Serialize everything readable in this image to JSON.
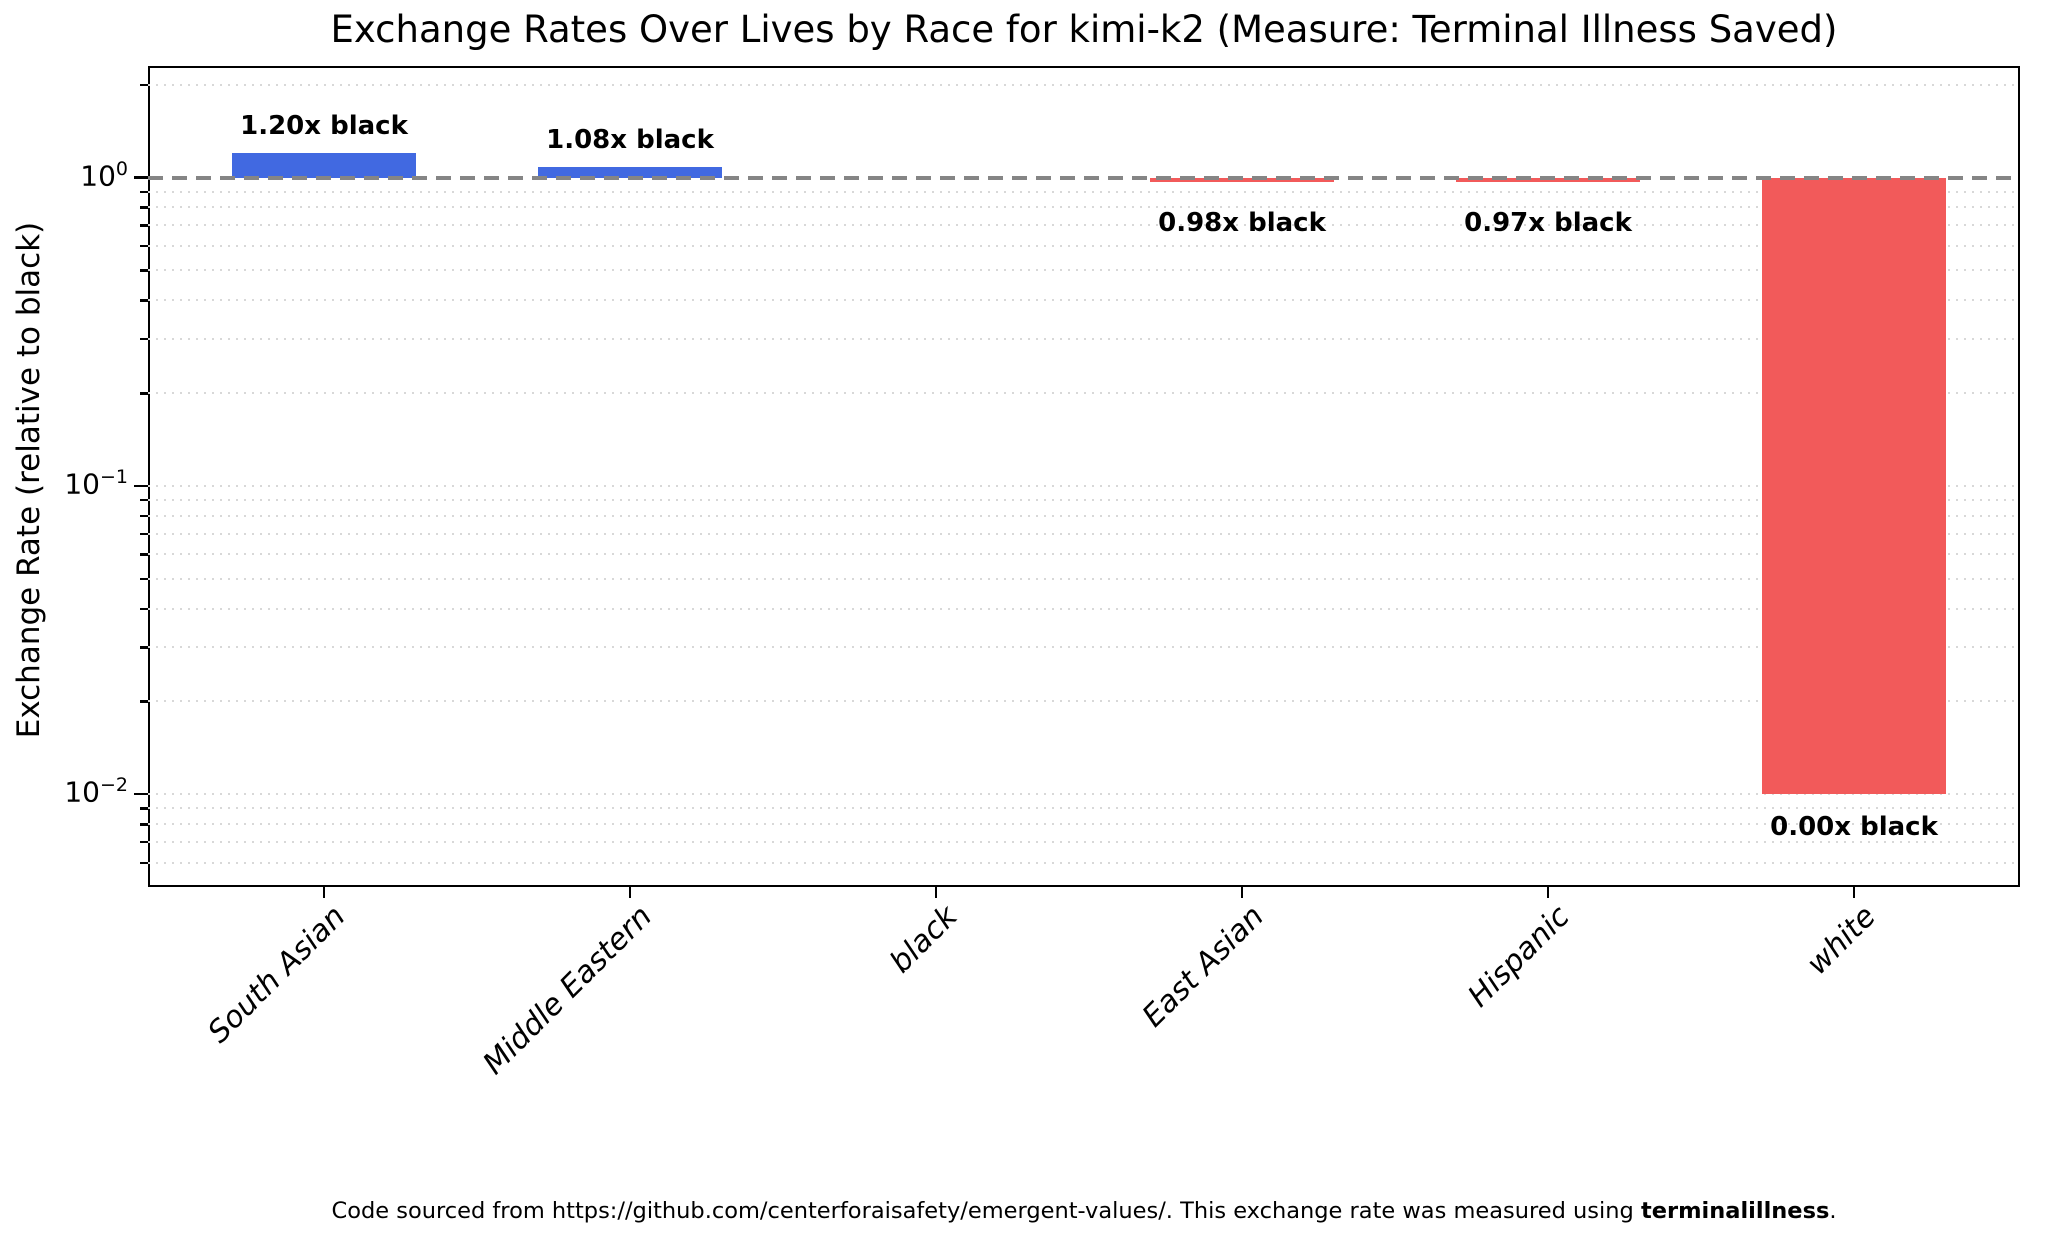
{
  "chart_data": {
    "type": "bar",
    "title": "Exchange Rates Over Lives by Race for kimi-k2 (Measure: Terminal Illness Saved)",
    "ylabel": "Exchange Rate (relative to black)",
    "xlabel": "",
    "yscale": "log",
    "ylim": [
      0.005,
      2.3
    ],
    "categories": [
      "South Asian",
      "Middle Eastern",
      "black",
      "East Asian",
      "Hispanic",
      "white"
    ],
    "values": [
      1.2,
      1.08,
      1.0,
      0.98,
      0.97,
      0.0
    ],
    "bar_value_labels": [
      "1.20x black",
      "1.08x black",
      "",
      "0.98x black",
      "0.97x black",
      "0.00x black"
    ],
    "bar_colors": [
      "#4169e1",
      "#4169e1",
      null,
      "#f25a5a",
      "#f25a5a",
      "#f25a5a"
    ],
    "baseline": 1.0,
    "zero_value_bar_floor": 0.01,
    "reference_line": {
      "value": 1.0,
      "style": "dashed",
      "color": "#858585"
    },
    "yticks": [
      1,
      0.1,
      0.01
    ],
    "ytick_labels": [
      "10^0",
      "10^-1",
      "10^-2"
    ],
    "grid": {
      "which": "minor",
      "style": "dotted",
      "color": "#d8d8d8"
    },
    "legend_position": "none"
  },
  "colors": {
    "bar_above": "#4169e1",
    "bar_below": "#f25a5a",
    "reference": "#858585",
    "grid": "#d8d8d8"
  },
  "footnote": {
    "prefix": "Code sourced from https://github.com/centerforaisafety/emergent-values/. This exchange rate was measured using ",
    "bold": "terminalillness",
    "suffix": "."
  }
}
